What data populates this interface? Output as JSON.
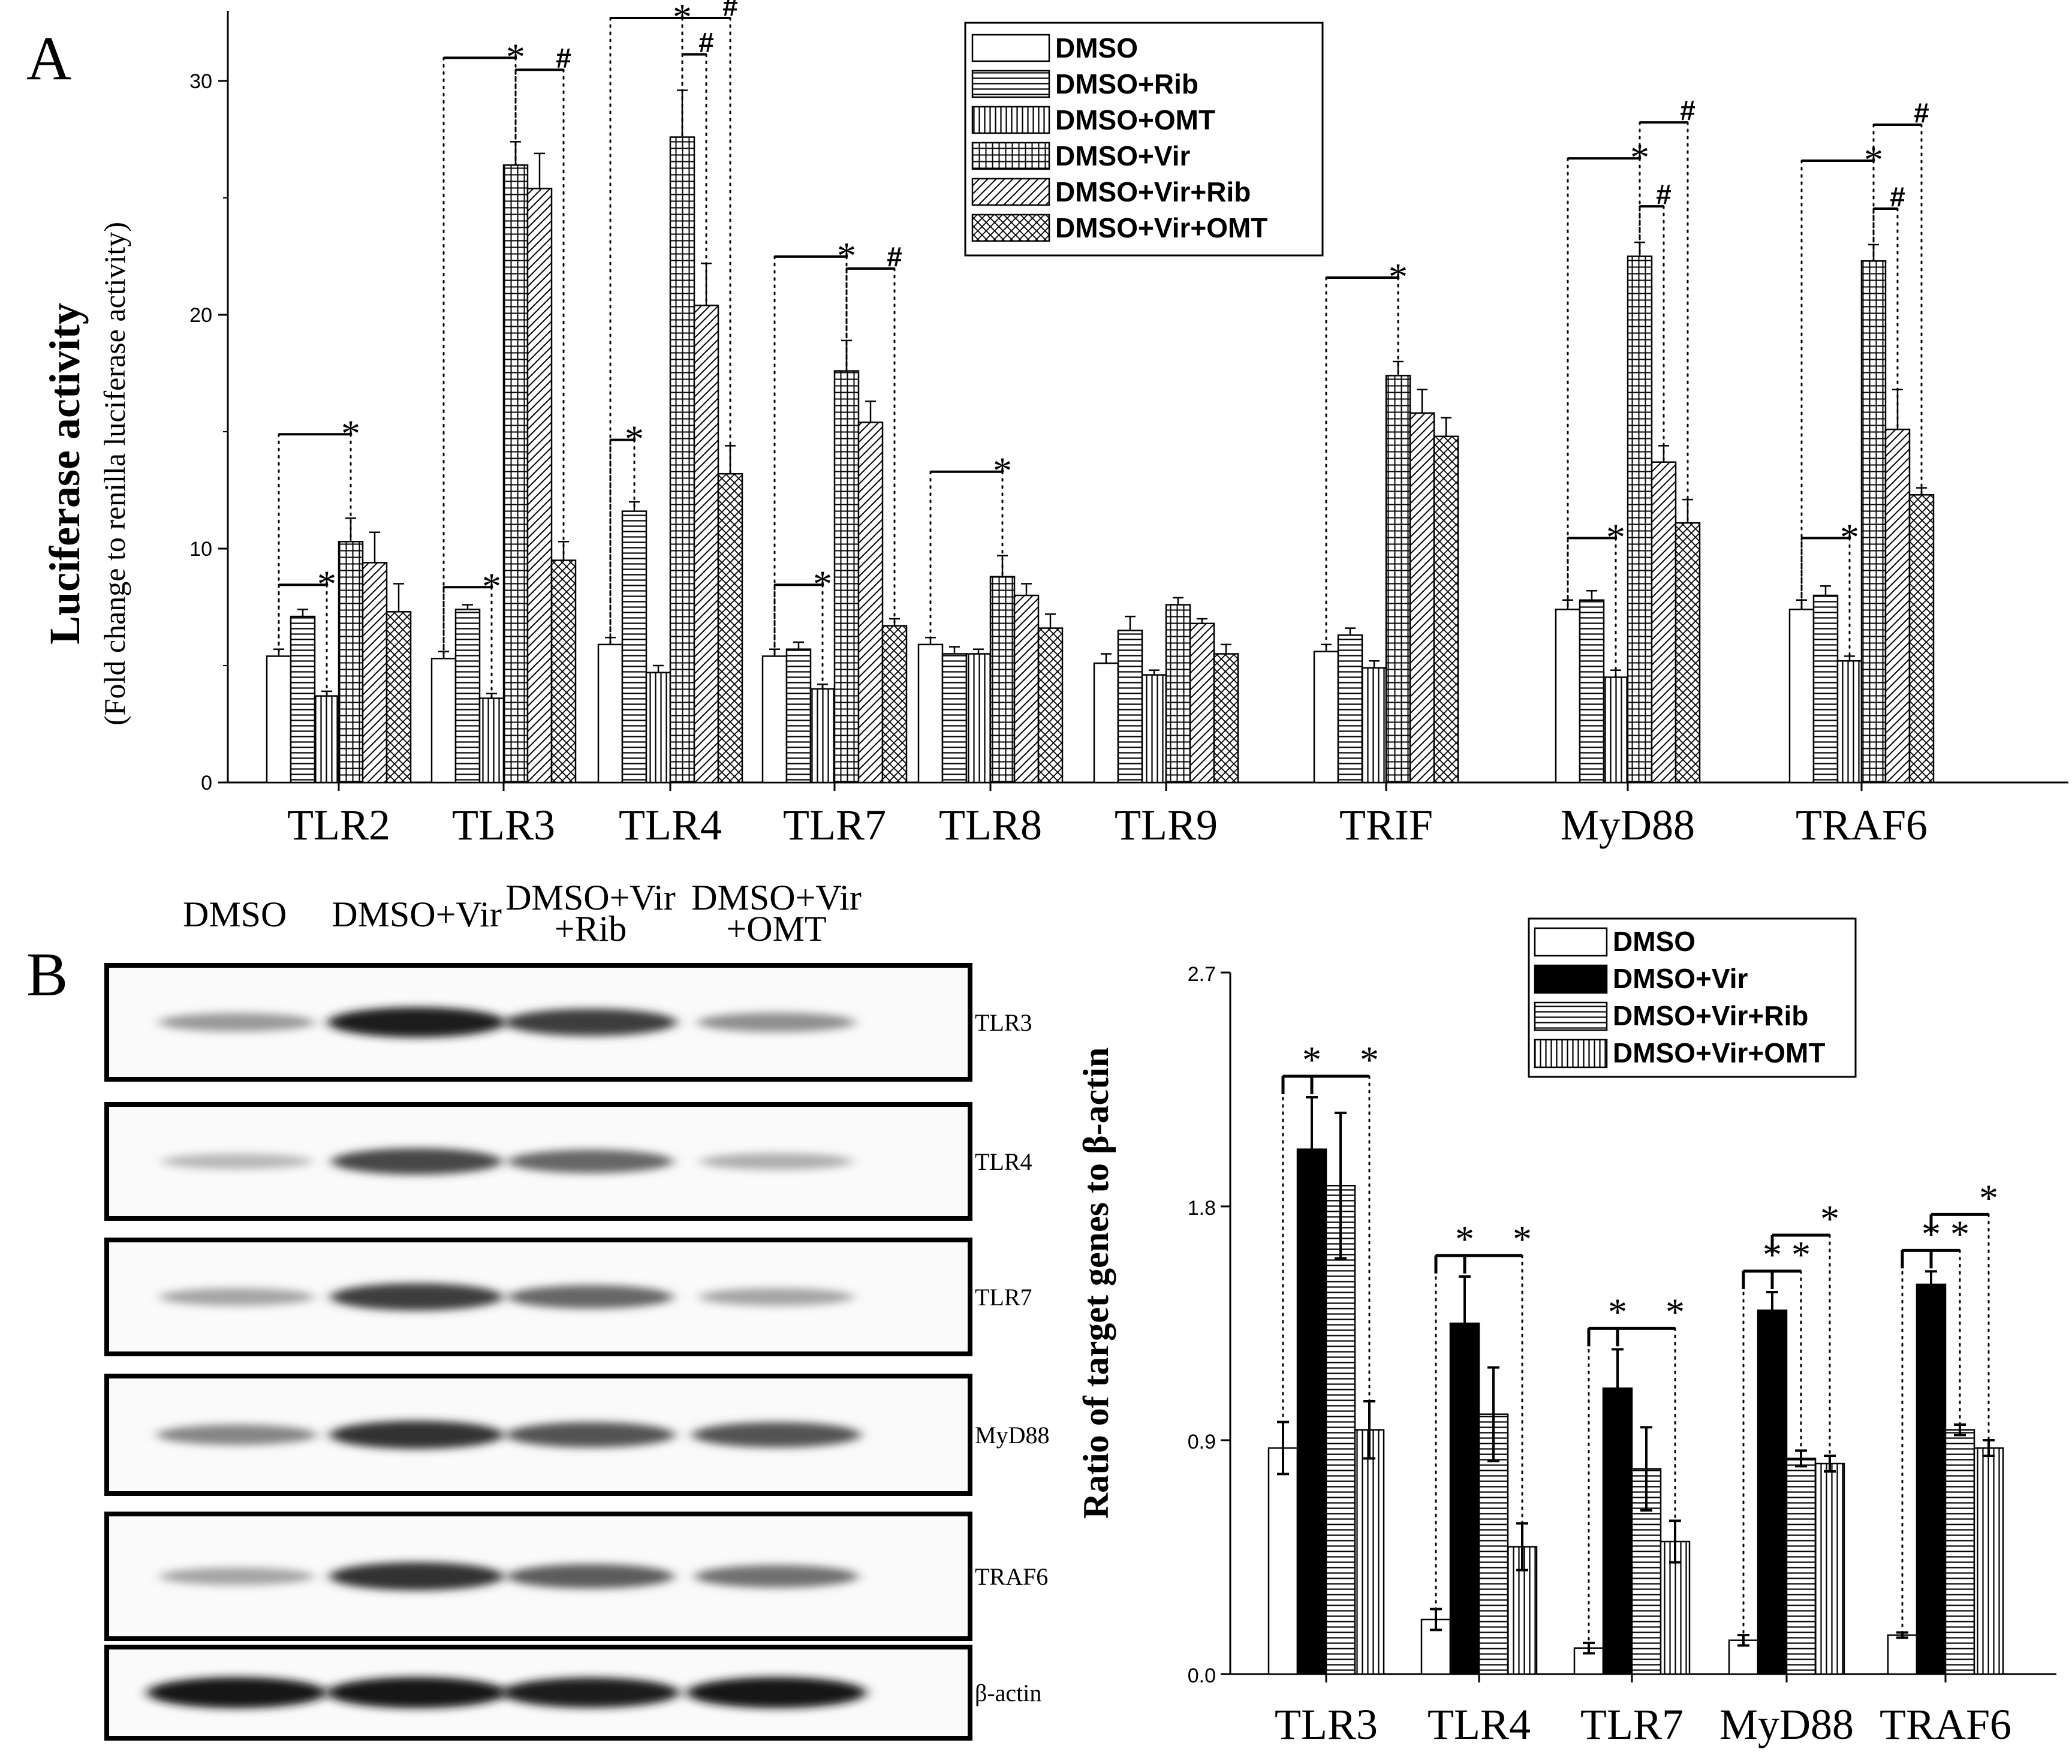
{
  "panels": {
    "a": "A",
    "b": "B"
  },
  "chart_data": [
    {
      "type": "bar",
      "panel": "A",
      "ylabel": "Luciferase activity",
      "ylabel_sub": "(Fold change to renilla luciferase activity)",
      "ylim": [
        0,
        33
      ],
      "yticks": [
        0,
        10,
        20,
        30
      ],
      "categories": [
        "TLR2",
        "TLR3",
        "TLR4",
        "TLR7",
        "TLR8",
        "TLR9",
        "TRIF",
        "MyD88",
        "TRAF6"
      ],
      "legend_position": "top-right",
      "series": [
        {
          "name": "DMSO",
          "pattern": "blank",
          "values": [
            5.4,
            5.3,
            5.9,
            5.4,
            5.9,
            5.1,
            5.6,
            7.4,
            7.4
          ],
          "errors": [
            0.3,
            0.3,
            0.3,
            0.3,
            0.3,
            0.4,
            0.3,
            0.4,
            0.4
          ]
        },
        {
          "name": "DMSO+Rib",
          "pattern": "horizontal",
          "values": [
            7.1,
            7.4,
            11.6,
            5.7,
            5.5,
            6.5,
            6.3,
            7.8,
            8.0
          ],
          "errors": [
            0.3,
            0.2,
            0.4,
            0.3,
            0.3,
            0.6,
            0.3,
            0.4,
            0.4
          ]
        },
        {
          "name": "DMSO+OMT",
          "pattern": "vertical",
          "values": [
            3.7,
            3.6,
            4.7,
            4.0,
            5.5,
            4.6,
            4.9,
            4.5,
            5.2
          ],
          "errors": [
            0.2,
            0.2,
            0.3,
            0.2,
            0.2,
            0.2,
            0.3,
            0.3,
            0.2
          ]
        },
        {
          "name": "DMSO+Vir",
          "pattern": "grid",
          "values": [
            10.3,
            26.4,
            27.6,
            17.6,
            8.8,
            7.6,
            17.4,
            22.5,
            22.3
          ],
          "errors": [
            1.0,
            1.0,
            2.0,
            1.3,
            0.9,
            0.3,
            0.6,
            0.6,
            0.7
          ]
        },
        {
          "name": "DMSO+Vir+Rib",
          "pattern": "diagonal",
          "values": [
            9.4,
            25.4,
            20.4,
            15.4,
            8.0,
            6.8,
            15.8,
            13.7,
            15.1
          ],
          "errors": [
            1.3,
            1.5,
            1.8,
            0.9,
            0.5,
            0.2,
            1.0,
            0.7,
            1.7
          ]
        },
        {
          "name": "DMSO+Vir+OMT",
          "pattern": "crosshatch",
          "values": [
            7.3,
            9.5,
            13.2,
            6.7,
            6.6,
            5.5,
            14.8,
            11.1,
            12.3
          ],
          "errors": [
            1.2,
            0.8,
            1.2,
            0.3,
            0.6,
            0.4,
            0.8,
            1.0,
            0.3
          ]
        }
      ],
      "significance": [
        {
          "category": "TLR2",
          "from": 0,
          "to": 3,
          "mark": "*"
        },
        {
          "category": "TLR2",
          "from": 0,
          "to": 2,
          "mark": "*"
        },
        {
          "category": "TLR3",
          "from": 0,
          "to": 3,
          "mark": "*"
        },
        {
          "category": "TLR3",
          "from": 0,
          "to": 2,
          "mark": "*"
        },
        {
          "category": "TLR3",
          "from": 3,
          "to": 5,
          "mark": "#"
        },
        {
          "category": "TLR4",
          "from": 0,
          "to": 3,
          "mark": "*"
        },
        {
          "category": "TLR4",
          "from": 0,
          "to": 1,
          "mark": "*"
        },
        {
          "category": "TLR4",
          "from": 3,
          "to": 4,
          "mark": "#"
        },
        {
          "category": "TLR4",
          "from": 3,
          "to": 5,
          "mark": "#"
        },
        {
          "category": "TLR7",
          "from": 0,
          "to": 3,
          "mark": "*"
        },
        {
          "category": "TLR7",
          "from": 0,
          "to": 2,
          "mark": "*"
        },
        {
          "category": "TLR7",
          "from": 3,
          "to": 5,
          "mark": "#"
        },
        {
          "category": "TLR8",
          "from": 0,
          "to": 3,
          "mark": "*"
        },
        {
          "category": "TRIF",
          "from": 0,
          "to": 3,
          "mark": "*"
        },
        {
          "category": "MyD88",
          "from": 0,
          "to": 3,
          "mark": "*"
        },
        {
          "category": "MyD88",
          "from": 0,
          "to": 2,
          "mark": "*"
        },
        {
          "category": "MyD88",
          "from": 3,
          "to": 4,
          "mark": "#"
        },
        {
          "category": "MyD88",
          "from": 3,
          "to": 5,
          "mark": "#"
        },
        {
          "category": "TRAF6",
          "from": 0,
          "to": 3,
          "mark": "*"
        },
        {
          "category": "TRAF6",
          "from": 0,
          "to": 2,
          "mark": "*"
        },
        {
          "category": "TRAF6",
          "from": 3,
          "to": 4,
          "mark": "#"
        },
        {
          "category": "TRAF6",
          "from": 3,
          "to": 5,
          "mark": "#"
        }
      ]
    },
    {
      "type": "bar",
      "panel": "B",
      "ylabel": "Ratio of target genes to β-actin",
      "ylim": [
        0,
        2.7
      ],
      "yticks": [
        "0.0",
        "0.9",
        "1.8",
        "2.7"
      ],
      "categories": [
        "TLR3",
        "TLR4",
        "TLR7",
        "MyD88",
        "TRAF6"
      ],
      "legend_position": "top-right",
      "series": [
        {
          "name": "DMSO",
          "pattern": "blank",
          "values": [
            0.87,
            0.21,
            0.1,
            0.13,
            0.15
          ],
          "errors": [
            0.1,
            0.04,
            0.02,
            0.02,
            0.01
          ]
        },
        {
          "name": "DMSO+Vir",
          "pattern": "solid",
          "values": [
            2.02,
            1.35,
            1.1,
            1.4,
            1.5
          ],
          "errors": [
            0.2,
            0.18,
            0.15,
            0.07,
            0.05
          ]
        },
        {
          "name": "DMSO+Vir+Rib",
          "pattern": "horizontal",
          "values": [
            1.88,
            1.0,
            0.79,
            0.83,
            0.94
          ],
          "errors": [
            0.28,
            0.18,
            0.16,
            0.03,
            0.02
          ]
        },
        {
          "name": "DMSO+Vir+OMT",
          "pattern": "vertical",
          "values": [
            0.94,
            0.49,
            0.51,
            0.81,
            0.87
          ],
          "errors": [
            0.11,
            0.09,
            0.08,
            0.03,
            0.03
          ]
        }
      ],
      "significance": [
        {
          "category": "TLR3",
          "from": 0,
          "to": 1,
          "mark": "*"
        },
        {
          "category": "TLR3",
          "from": 1,
          "to": 3,
          "mark": "*"
        },
        {
          "category": "TLR4",
          "from": 0,
          "to": 1,
          "mark": "*"
        },
        {
          "category": "TLR4",
          "from": 1,
          "to": 3,
          "mark": "*"
        },
        {
          "category": "TLR7",
          "from": 0,
          "to": 1,
          "mark": "*"
        },
        {
          "category": "TLR7",
          "from": 1,
          "to": 3,
          "mark": "*"
        },
        {
          "category": "MyD88",
          "from": 0,
          "to": 1,
          "mark": "*"
        },
        {
          "category": "MyD88",
          "from": 1,
          "to": 2,
          "mark": "*"
        },
        {
          "category": "MyD88",
          "from": 1,
          "to": 3,
          "mark": "*"
        },
        {
          "category": "TRAF6",
          "from": 0,
          "to": 1,
          "mark": "*"
        },
        {
          "category": "TRAF6",
          "from": 1,
          "to": 2,
          "mark": "*"
        },
        {
          "category": "TRAF6",
          "from": 1,
          "to": 3,
          "mark": "*"
        }
      ]
    }
  ],
  "western_blot": {
    "lane_headers": [
      [
        "DMSO"
      ],
      [
        "DMSO+Vir"
      ],
      [
        "DMSO+Vir",
        "+Rib"
      ],
      [
        "DMSO+Vir",
        "+OMT"
      ]
    ],
    "blots": [
      {
        "label": "TLR3",
        "intensities": [
          0.35,
          0.95,
          0.8,
          0.4
        ]
      },
      {
        "label": "TLR4",
        "intensities": [
          0.2,
          0.75,
          0.6,
          0.25
        ]
      },
      {
        "label": "TLR7",
        "intensities": [
          0.3,
          0.8,
          0.6,
          0.3
        ]
      },
      {
        "label": "MyD88",
        "intensities": [
          0.45,
          0.85,
          0.7,
          0.7
        ]
      },
      {
        "label": "TRAF6",
        "intensities": [
          0.3,
          0.85,
          0.65,
          0.55
        ]
      },
      {
        "label": "β-actin",
        "intensities": [
          1.0,
          1.0,
          0.95,
          1.0
        ]
      }
    ]
  }
}
